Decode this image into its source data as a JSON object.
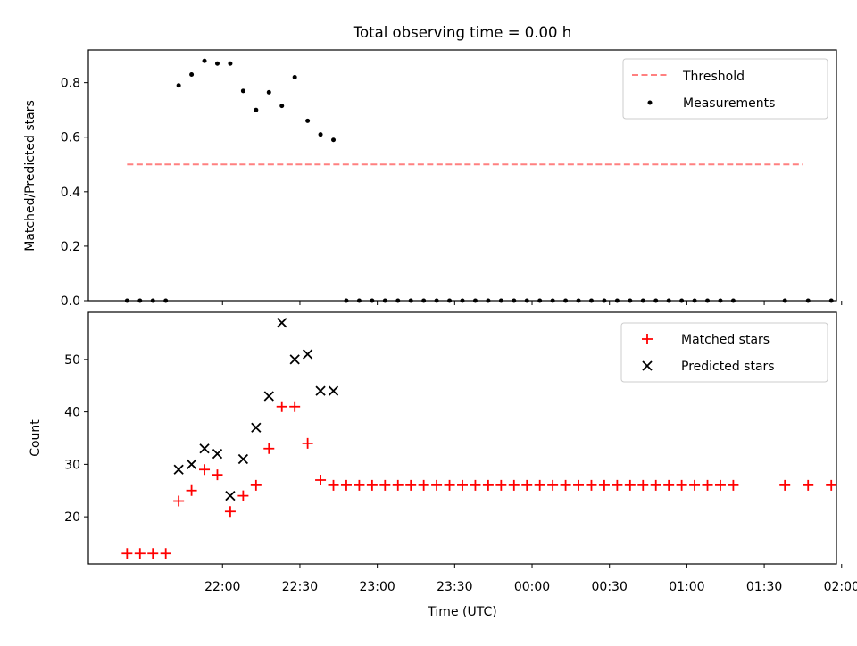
{
  "chart_data": [
    {
      "type": "scatter",
      "title": "Total observing time = 0.00 h",
      "xlabel": "",
      "ylabel": "Matched/Predicted stars",
      "x_unit": "minutes since 00:00 UTC",
      "xlim": [
        -172,
        118
      ],
      "ylim": [
        0,
        0.92
      ],
      "yticks": [
        0.0,
        0.2,
        0.4,
        0.6,
        0.8
      ],
      "yticklabels": [
        "0.0",
        "0.2",
        "0.4",
        "0.6",
        "0.8"
      ],
      "legend_position": "upper right",
      "series": [
        {
          "name": "Threshold",
          "kind": "dashed-line",
          "color": "#ff8080",
          "x": [
            -157,
            105
          ],
          "y": [
            0.5,
            0.5
          ]
        },
        {
          "name": "Measurements",
          "kind": "dot",
          "color": "#000000",
          "x": [
            -157,
            -152,
            -147,
            -142,
            -137,
            -132,
            -127,
            -122,
            -117,
            -112,
            -107,
            -102,
            -97,
            -92,
            -87,
            -82,
            -77,
            -72,
            -67,
            -62,
            -57,
            -52,
            -47,
            -42,
            -37,
            -32,
            -27,
            -22,
            -17,
            -12,
            -7,
            -2,
            3,
            8,
            13,
            18,
            23,
            28,
            33,
            38,
            43,
            48,
            53,
            58,
            63,
            68,
            73,
            78,
            98,
            107,
            116
          ],
          "y": [
            0,
            0,
            0,
            0,
            0.79,
            0.83,
            0.88,
            0.87,
            0.87,
            0.77,
            0.7,
            0.765,
            0.715,
            0.82,
            0.66,
            0.61,
            0.59,
            0,
            0,
            0,
            0,
            0,
            0,
            0,
            0,
            0,
            0,
            0,
            0,
            0,
            0,
            0,
            0,
            0,
            0,
            0,
            0,
            0,
            0,
            0,
            0,
            0,
            0,
            0,
            0,
            0,
            0,
            0,
            0,
            0,
            0
          ]
        }
      ]
    },
    {
      "type": "scatter",
      "title": "",
      "xlabel": "Time (UTC)",
      "ylabel": "Count",
      "x_unit": "minutes since 00:00 UTC",
      "xlim": [
        -172,
        118
      ],
      "ylim": [
        11,
        59
      ],
      "yticks": [
        20,
        30,
        40,
        50
      ],
      "yticklabels": [
        "20",
        "30",
        "40",
        "50"
      ],
      "xticks": [
        -120,
        -90,
        -60,
        -30,
        0,
        30,
        60,
        90,
        120
      ],
      "xticklabels": [
        "22:00",
        "22:30",
        "23:00",
        "23:30",
        "00:00",
        "00:30",
        "01:00",
        "01:30",
        "02:00"
      ],
      "legend_position": "upper right",
      "series": [
        {
          "name": "Matched stars",
          "kind": "plus",
          "color": "#ff0000",
          "x": [
            -157,
            -152,
            -147,
            -142,
            -137,
            -132,
            -127,
            -122,
            -117,
            -112,
            -107,
            -102,
            -97,
            -92,
            -87,
            -82,
            -77,
            -72,
            -67,
            -62,
            -57,
            -52,
            -47,
            -42,
            -37,
            -32,
            -27,
            -22,
            -17,
            -12,
            -7,
            -2,
            3,
            8,
            13,
            18,
            23,
            28,
            33,
            38,
            43,
            48,
            53,
            58,
            63,
            68,
            73,
            78,
            98,
            107,
            116
          ],
          "y": [
            13,
            13,
            13,
            13,
            23,
            25,
            29,
            28,
            21,
            24,
            26,
            33,
            41,
            41,
            34,
            27,
            26,
            26,
            26,
            26,
            26,
            26,
            26,
            26,
            26,
            26,
            26,
            26,
            26,
            26,
            26,
            26,
            26,
            26,
            26,
            26,
            26,
            26,
            26,
            26,
            26,
            26,
            26,
            26,
            26,
            26,
            26,
            26,
            26,
            26,
            26
          ]
        },
        {
          "name": "Predicted stars",
          "kind": "cross",
          "color": "#000000",
          "x": [
            -137,
            -132,
            -127,
            -122,
            -117,
            -112,
            -107,
            -102,
            -97,
            -92,
            -87,
            -82,
            -77
          ],
          "y": [
            29,
            30,
            33,
            32,
            24,
            31,
            37,
            43,
            57,
            50,
            51,
            44,
            44
          ]
        }
      ]
    }
  ]
}
